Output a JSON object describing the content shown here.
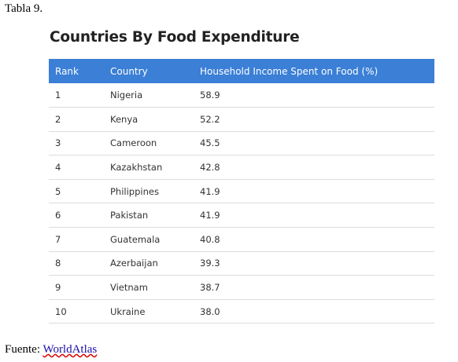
{
  "caption": "Tabla 9.",
  "title": "Countries By Food Expenditure",
  "table": {
    "headers": [
      "Rank",
      "Country",
      "Household Income Spent on Food (%)"
    ],
    "rows": [
      {
        "rank": "1",
        "country": "Nigeria",
        "value": "58.9"
      },
      {
        "rank": "2",
        "country": "Kenya",
        "value": "52.2"
      },
      {
        "rank": "3",
        "country": "Cameroon",
        "value": "45.5"
      },
      {
        "rank": "4",
        "country": "Kazakhstan",
        "value": "42.8"
      },
      {
        "rank": "5",
        "country": "Philippines",
        "value": "41.9"
      },
      {
        "rank": "6",
        "country": "Pakistan",
        "value": "41.9"
      },
      {
        "rank": "7",
        "country": "Guatemala",
        "value": "40.8"
      },
      {
        "rank": "8",
        "country": "Azerbaijan",
        "value": "39.3"
      },
      {
        "rank": "9",
        "country": "Vietnam",
        "value": "38.7"
      },
      {
        "rank": "10",
        "country": "Ukraine",
        "value": "38.0"
      }
    ]
  },
  "source": {
    "label": "Fuente:",
    "link_text": "WorldAtlas"
  }
}
